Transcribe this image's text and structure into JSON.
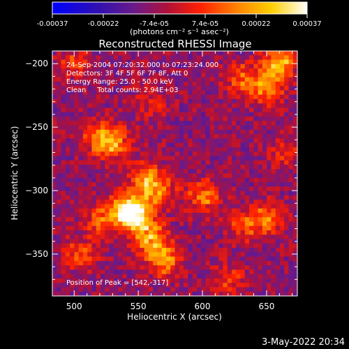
{
  "chart_data": {
    "type": "heatmap",
    "title": "Reconstructed RHESSI Image",
    "xlabel": "Heliocentric X (arcsec)",
    "ylabel": "Heliocentric Y (arcsec)",
    "xlim": [
      483,
      674
    ],
    "ylim": [
      -383,
      -190
    ],
    "x_ticks": [
      500,
      550,
      600,
      650
    ],
    "y_ticks": [
      -200,
      -250,
      -300,
      -350
    ],
    "colorbar": {
      "range": [
        -0.00037,
        0.00037
      ],
      "tick_labels": [
        "-0.00037",
        "-0.00022",
        "-7.4e-05",
        "7.4e-05",
        "0.00022",
        "0.00037"
      ],
      "unit_text": "(photons cm⁻² s⁻¹ asec⁻²)"
    },
    "annotations": [
      "24-Sep-2004 07:20:32.000 to 07:23:24.000",
      "Detectors: 3F 4F 5F 6F 7F 8F, Att 0",
      "Energy Range: 25.0 - 50.0 keV",
      "Clean     Total counts: 2.94E+03"
    ],
    "peak_label": "Position of Peak = [542,-317]",
    "peak": [
      542,
      -317
    ],
    "sources": [
      {
        "x": 548,
        "y": -320,
        "level": 0.00037
      },
      {
        "x": 540,
        "y": -316,
        "level": 0.00034
      },
      {
        "x": 560,
        "y": -338,
        "level": 0.00031
      },
      {
        "x": 570,
        "y": -355,
        "level": 0.00028
      },
      {
        "x": 565,
        "y": -300,
        "level": 0.00026
      },
      {
        "x": 555,
        "y": -290,
        "level": 0.00022
      },
      {
        "x": 530,
        "y": -262,
        "level": 0.0003
      },
      {
        "x": 518,
        "y": -258,
        "level": 0.00018
      },
      {
        "x": 660,
        "y": -200,
        "level": 0.00033
      },
      {
        "x": 650,
        "y": -220,
        "level": 0.00026
      },
      {
        "x": 630,
        "y": -212,
        "level": 0.0002
      },
      {
        "x": 600,
        "y": -305,
        "level": 0.00025
      },
      {
        "x": 650,
        "y": -322,
        "level": 0.00022
      },
      {
        "x": 632,
        "y": -328,
        "level": 0.00018
      },
      {
        "x": 520,
        "y": -322,
        "level": 0.0002
      },
      {
        "x": 505,
        "y": -350,
        "level": 0.00018
      },
      {
        "x": 620,
        "y": -370,
        "level": 0.00017
      },
      {
        "x": 500,
        "y": -200,
        "level": 0.00016
      },
      {
        "x": 560,
        "y": -230,
        "level": 0.00012
      },
      {
        "x": 665,
        "y": -270,
        "level": 0.00014
      }
    ]
  },
  "footer": {
    "timestamp": "3-May-2022 20:34"
  }
}
